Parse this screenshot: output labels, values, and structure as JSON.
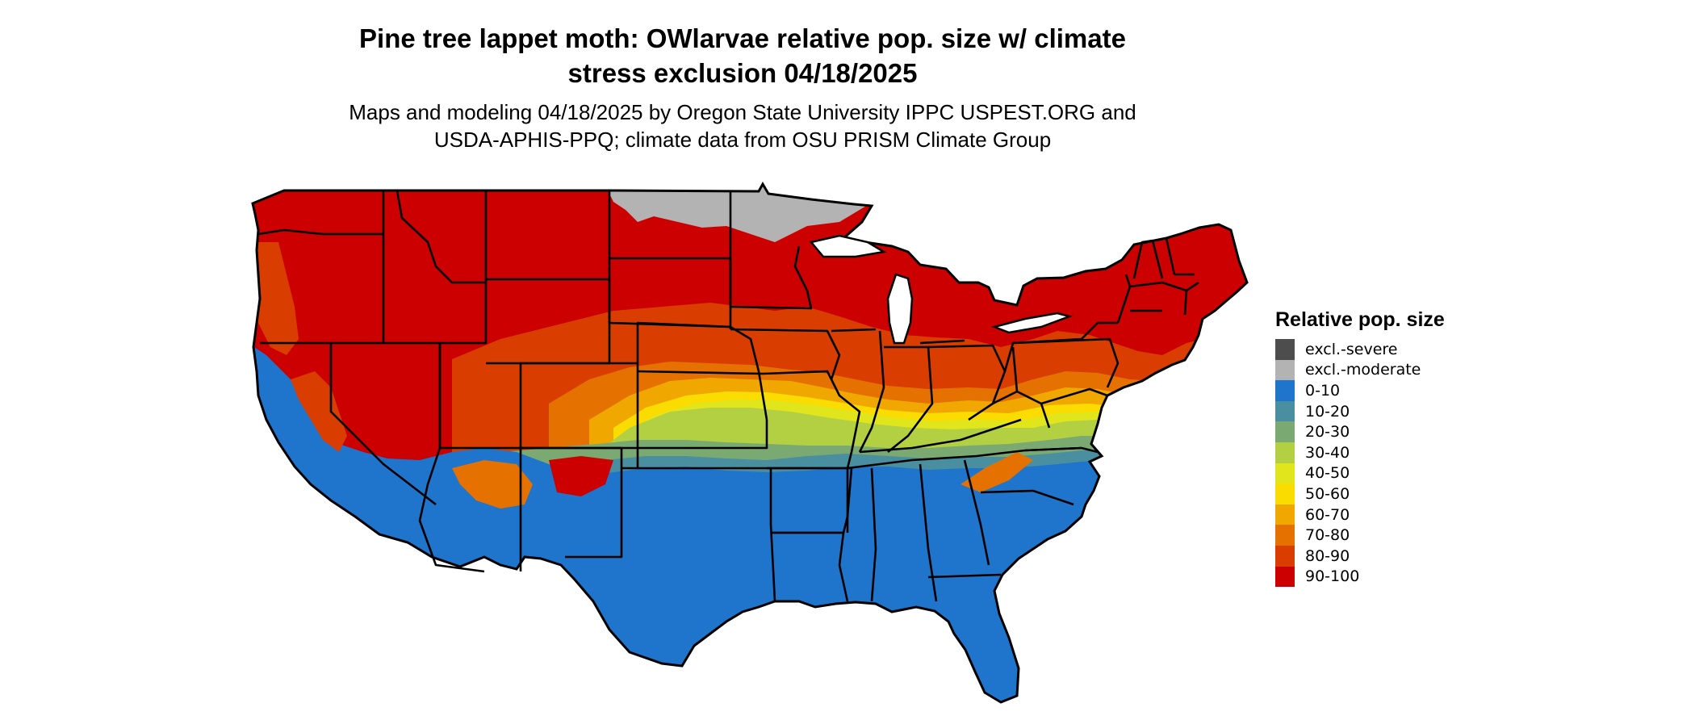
{
  "title": {
    "line1": "Pine tree lappet moth: OWlarvae relative pop. size w/ climate",
    "line2": "stress exclusion 04/18/2025"
  },
  "subtitle": {
    "line1": "Maps and modeling 04/18/2025 by Oregon State University IPPC USPEST.ORG and",
    "line2": "USDA-APHIS-PPQ; climate data from OSU PRISM Climate Group"
  },
  "legend": {
    "title": "Relative pop. size",
    "items": [
      {
        "label": "excl.-severe",
        "color": "#4d4d4d"
      },
      {
        "label": "excl.-moderate",
        "color": "#b3b3b3"
      },
      {
        "label": "0-10",
        "color": "#1f74cc"
      },
      {
        "label": "10-20",
        "color": "#4a8fa0"
      },
      {
        "label": "20-30",
        "color": "#7aaa72"
      },
      {
        "label": "30-40",
        "color": "#b3cf42"
      },
      {
        "label": "40-50",
        "color": "#e1e61c"
      },
      {
        "label": "50-60",
        "color": "#fadc00"
      },
      {
        "label": "60-70",
        "color": "#f0a800"
      },
      {
        "label": "70-80",
        "color": "#e57200"
      },
      {
        "label": "80-90",
        "color": "#d93d00"
      },
      {
        "label": "90-100",
        "color": "#cc0000"
      }
    ]
  }
}
